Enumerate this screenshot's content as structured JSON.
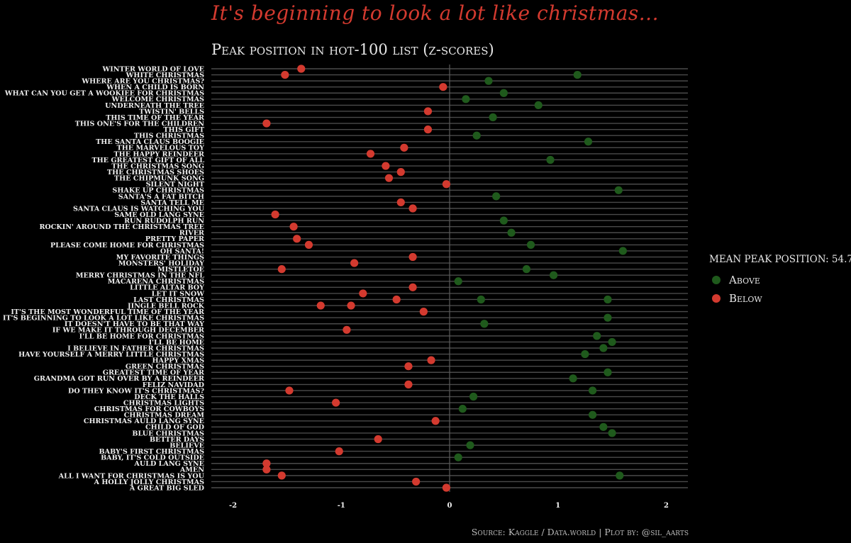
{
  "title": "It's beginning to look a lot like christmas...",
  "subtitle": "Peak position in hot-100 list (z-scores)",
  "caption": "Source: Kaggle / Data.world | Plot by: @sil_aarts",
  "legend": {
    "title": "Mean peak position: 54.7",
    "items": [
      {
        "label": "Above",
        "color": "#1f5a1c"
      },
      {
        "label": "Below",
        "color": "#d33a2f"
      }
    ]
  },
  "chart_data": {
    "type": "scatter",
    "title": "Peak position in hot-100 list (z-scores)",
    "xlim": [
      -2.2,
      2.2
    ],
    "x_ticks": [
      -2,
      -1,
      0,
      1,
      2
    ],
    "colors": {
      "Above": "#1f5a1c",
      "Below": "#d33a2f"
    },
    "categories": [
      "WINTER WORLD OF LOVE",
      "WHITE CHRISTMAS",
      "WHERE ARE YOU CHRISTMAS?",
      "WHEN A CHILD IS BORN",
      "WHAT CAN YOU GET A WOOKIEE FOR CHRISTMAS",
      "WELCOME CHRISTMAS",
      "UNDERNEATH THE TREE",
      "TWISTIN' BELLS",
      "THIS TIME OF THE YEAR",
      "THIS ONE'S FOR THE CHILDREN",
      "THIS GIFT",
      "THIS CHRISTMAS",
      "THE SANTA CLAUS BOOGIE",
      "THE MARVELOUS TOY",
      "THE HAPPY REINDEER",
      "THE GREATEST GIFT OF ALL",
      "THE CHRISTMAS SONG",
      "THE CHRISTMAS SHOES",
      "THE CHIPMUNK SONG",
      "SILENT NIGHT",
      "SHAKE UP CHRISTMAS",
      "SANTA'S A FAT BITCH",
      "SANTA TELL ME",
      "SANTA CLAUS IS WATCHING YOU",
      "SAME OLD LANG SYNE",
      "RUN RUDOLPH RUN",
      "ROCKIN' AROUND THE CHRISTMAS TREE",
      "RIVER",
      "PRETTY PAPER",
      "PLEASE COME HOME FOR CHRISTMAS",
      "OH SANTA!",
      "MY FAVORITE THINGS",
      "MONSTERS' HOLIDAY",
      "MISTLETOE",
      "MERRY CHRISTMAS IN THE NFL",
      "MACARENA CHRISTMAS",
      "LITTLE ALTAR BOY",
      "LET IT SNOW",
      "LAST CHRISTMAS",
      "JINGLE BELL ROCK",
      "IT'S THE MOST WONDERFUL TIME OF THE YEAR",
      "IT'S BEGINNING TO LOOK A LOT LIKE CHRISTMAS",
      "IT DOESN'T HAVE TO BE THAT WAY",
      "IF WE MAKE IT THROUGH DECEMBER",
      "I'LL BE HOME FOR CHRISTMAS",
      "I'LL BE HOME",
      "I BELIEVE IN FATHER CHRISTMAS",
      "HAVE YOURSELF A MERRY LITTLE CHRISTMAS",
      "HAPPY XMAS",
      "GREEN CHRISTMAS",
      "GREATEST TIME OF YEAR",
      "GRANDMA GOT RUN OVER BY A REINDEER",
      "FELIZ NAVIDAD",
      "DO THEY KNOW IT'S CHRISTMAS?",
      "DECK THE HALLS",
      "CHRISTMAS LIGHTS",
      "CHRISTMAS FOR COWBOYS",
      "CHRISTMAS DREAM",
      "CHRISTMAS AULD LANG SYNE",
      "CHILD OF GOD",
      "BLUE CHRISTMAS",
      "BETTER DAYS",
      "BELIEVE",
      "BABY'S FIRST CHRISTMAS",
      "BABY, IT'S COLD OUTSIDE",
      "AULD LANG SYNE",
      "AMEN",
      "ALL I WANT FOR CHRISTMAS IS YOU",
      "A HOLLY JOLLY CHRISTMAS",
      "A GREAT BIG SLED"
    ],
    "points": [
      {
        "song": "WINTER WORLD OF LOVE",
        "x": -1.37,
        "group": "Below"
      },
      {
        "song": "WHITE CHRISTMAS",
        "x": -1.52,
        "group": "Below"
      },
      {
        "song": "WHITE CHRISTMAS",
        "x": 1.18,
        "group": "Above"
      },
      {
        "song": "WHERE ARE YOU CHRISTMAS?",
        "x": 0.36,
        "group": "Above"
      },
      {
        "song": "WHEN A CHILD IS BORN",
        "x": -0.06,
        "group": "Below"
      },
      {
        "song": "WHAT CAN YOU GET A WOOKIEE FOR CHRISTMAS",
        "x": 0.5,
        "group": "Above"
      },
      {
        "song": "WELCOME CHRISTMAS",
        "x": 0.15,
        "group": "Above"
      },
      {
        "song": "UNDERNEATH THE TREE",
        "x": 0.82,
        "group": "Above"
      },
      {
        "song": "TWISTIN' BELLS",
        "x": -0.2,
        "group": "Below"
      },
      {
        "song": "THIS TIME OF THE YEAR",
        "x": 0.4,
        "group": "Above"
      },
      {
        "song": "THIS ONE'S FOR THE CHILDREN",
        "x": -1.69,
        "group": "Below"
      },
      {
        "song": "THIS GIFT",
        "x": -0.2,
        "group": "Below"
      },
      {
        "song": "THIS CHRISTMAS",
        "x": 0.25,
        "group": "Above"
      },
      {
        "song": "THE SANTA CLAUS BOOGIE",
        "x": 1.28,
        "group": "Above"
      },
      {
        "song": "THE MARVELOUS TOY",
        "x": -0.42,
        "group": "Below"
      },
      {
        "song": "THE HAPPY REINDEER",
        "x": -0.73,
        "group": "Below"
      },
      {
        "song": "THE GREATEST GIFT OF ALL",
        "x": 0.93,
        "group": "Above"
      },
      {
        "song": "THE CHRISTMAS SONG",
        "x": -0.59,
        "group": "Below"
      },
      {
        "song": "THE CHRISTMAS SHOES",
        "x": -0.45,
        "group": "Below"
      },
      {
        "song": "THE CHIPMUNK SONG",
        "x": -0.56,
        "group": "Below"
      },
      {
        "song": "SILENT NIGHT",
        "x": -0.03,
        "group": "Below"
      },
      {
        "song": "SHAKE UP CHRISTMAS",
        "x": 1.56,
        "group": "Above"
      },
      {
        "song": "SANTA'S A FAT BITCH",
        "x": 0.43,
        "group": "Above"
      },
      {
        "song": "SANTA TELL ME",
        "x": -0.45,
        "group": "Below"
      },
      {
        "song": "SANTA CLAUS IS WATCHING YOU",
        "x": -0.34,
        "group": "Below"
      },
      {
        "song": "SAME OLD LANG SYNE",
        "x": -1.61,
        "group": "Below"
      },
      {
        "song": "RUN RUDOLPH RUN",
        "x": 0.5,
        "group": "Above"
      },
      {
        "song": "ROCKIN' AROUND THE CHRISTMAS TREE",
        "x": -1.44,
        "group": "Below"
      },
      {
        "song": "RIVER",
        "x": 0.57,
        "group": "Above"
      },
      {
        "song": "PRETTY PAPER",
        "x": -1.41,
        "group": "Below"
      },
      {
        "song": "PLEASE COME HOME FOR CHRISTMAS",
        "x": -1.3,
        "group": "Below"
      },
      {
        "song": "PLEASE COME HOME FOR CHRISTMAS",
        "x": 0.75,
        "group": "Above"
      },
      {
        "song": "OH SANTA!",
        "x": 1.6,
        "group": "Above"
      },
      {
        "song": "MY FAVORITE THINGS",
        "x": -0.34,
        "group": "Below"
      },
      {
        "song": "MONSTERS' HOLIDAY",
        "x": -0.88,
        "group": "Below"
      },
      {
        "song": "MISTLETOE",
        "x": -1.55,
        "group": "Below"
      },
      {
        "song": "MISTLETOE",
        "x": 0.71,
        "group": "Above"
      },
      {
        "song": "MERRY CHRISTMAS IN THE NFL",
        "x": 0.96,
        "group": "Above"
      },
      {
        "song": "MACARENA CHRISTMAS",
        "x": 0.08,
        "group": "Above"
      },
      {
        "song": "LITTLE ALTAR BOY",
        "x": -0.34,
        "group": "Below"
      },
      {
        "song": "LET IT SNOW",
        "x": -0.8,
        "group": "Below"
      },
      {
        "song": "LAST CHRISTMAS",
        "x": -0.49,
        "group": "Below"
      },
      {
        "song": "LAST CHRISTMAS",
        "x": 0.29,
        "group": "Above"
      },
      {
        "song": "LAST CHRISTMAS",
        "x": 1.46,
        "group": "Above"
      },
      {
        "song": "JINGLE BELL ROCK",
        "x": -1.19,
        "group": "Below"
      },
      {
        "song": "JINGLE BELL ROCK",
        "x": -0.91,
        "group": "Below"
      },
      {
        "song": "IT'S THE MOST WONDERFUL TIME OF THE YEAR",
        "x": -0.24,
        "group": "Below"
      },
      {
        "song": "IT'S BEGINNING TO LOOK A LOT LIKE CHRISTMAS",
        "x": 1.46,
        "group": "Above"
      },
      {
        "song": "IT DOESN'T HAVE TO BE THAT WAY",
        "x": 0.32,
        "group": "Above"
      },
      {
        "song": "IF WE MAKE IT THROUGH DECEMBER",
        "x": -0.95,
        "group": "Below"
      },
      {
        "song": "I'LL BE HOME FOR CHRISTMAS",
        "x": 1.36,
        "group": "Above"
      },
      {
        "song": "I'LL BE HOME",
        "x": 1.5,
        "group": "Above"
      },
      {
        "song": "I BELIEVE IN FATHER CHRISTMAS",
        "x": 1.42,
        "group": "Above"
      },
      {
        "song": "HAVE YOURSELF A MERRY LITTLE CHRISTMAS",
        "x": 1.25,
        "group": "Above"
      },
      {
        "song": "HAPPY XMAS",
        "x": -0.17,
        "group": "Below"
      },
      {
        "song": "GREEN CHRISTMAS",
        "x": -0.38,
        "group": "Below"
      },
      {
        "song": "GREATEST TIME OF YEAR",
        "x": 1.46,
        "group": "Above"
      },
      {
        "song": "GRANDMA GOT RUN OVER BY A REINDEER",
        "x": 1.14,
        "group": "Above"
      },
      {
        "song": "FELIZ NAVIDAD",
        "x": -0.38,
        "group": "Below"
      },
      {
        "song": "DO THEY KNOW IT'S CHRISTMAS?",
        "x": -1.48,
        "group": "Below"
      },
      {
        "song": "DO THEY KNOW IT'S CHRISTMAS?",
        "x": 1.32,
        "group": "Above"
      },
      {
        "song": "DECK THE HALLS",
        "x": 0.22,
        "group": "Above"
      },
      {
        "song": "CHRISTMAS LIGHTS",
        "x": -1.05,
        "group": "Below"
      },
      {
        "song": "CHRISTMAS FOR COWBOYS",
        "x": 0.12,
        "group": "Above"
      },
      {
        "song": "CHRISTMAS DREAM",
        "x": 1.32,
        "group": "Above"
      },
      {
        "song": "CHRISTMAS AULD LANG SYNE",
        "x": -0.13,
        "group": "Below"
      },
      {
        "song": "CHILD OF GOD",
        "x": 1.42,
        "group": "Above"
      },
      {
        "song": "BLUE CHRISTMAS",
        "x": 1.5,
        "group": "Above"
      },
      {
        "song": "BETTER DAYS",
        "x": -0.66,
        "group": "Below"
      },
      {
        "song": "BELIEVE",
        "x": 0.19,
        "group": "Above"
      },
      {
        "song": "BABY'S FIRST CHRISTMAS",
        "x": -1.02,
        "group": "Below"
      },
      {
        "song": "BABY, IT'S COLD OUTSIDE",
        "x": 0.08,
        "group": "Above"
      },
      {
        "song": "AULD LANG SYNE",
        "x": -1.69,
        "group": "Below"
      },
      {
        "song": "AMEN",
        "x": -1.69,
        "group": "Below"
      },
      {
        "song": "ALL I WANT FOR CHRISTMAS IS YOU",
        "x": -1.55,
        "group": "Below"
      },
      {
        "song": "ALL I WANT FOR CHRISTMAS IS YOU",
        "x": 1.57,
        "group": "Above"
      },
      {
        "song": "A HOLLY JOLLY CHRISTMAS",
        "x": -0.31,
        "group": "Below"
      },
      {
        "song": "A GREAT BIG SLED",
        "x": -0.03,
        "group": "Below"
      }
    ]
  }
}
